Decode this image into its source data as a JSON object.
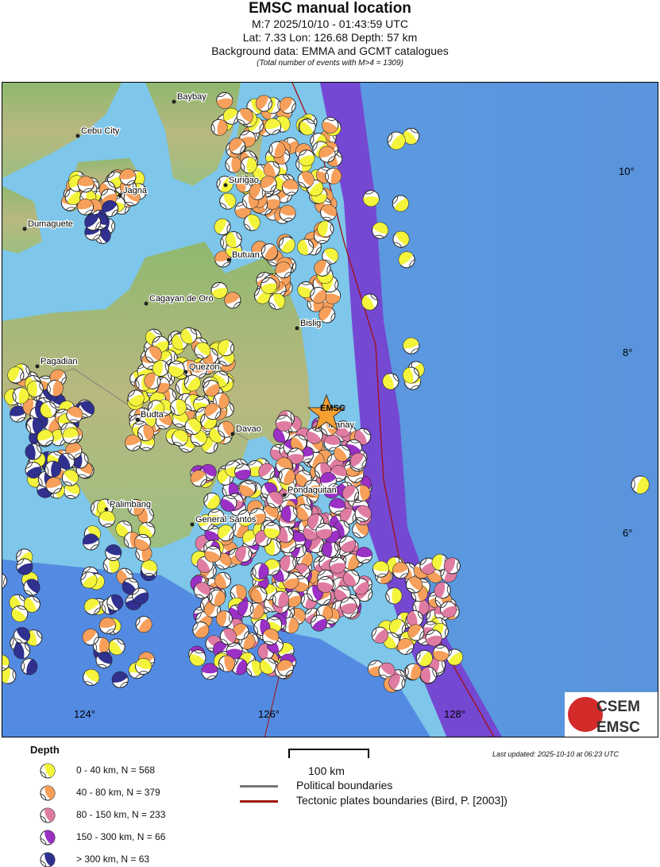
{
  "header": {
    "title": "EMSC manual location",
    "event": "M:7 2025/10/10 - 01:43:59 UTC",
    "location": "Lat: 7.33 Lon: 126.68 Depth: 57 km",
    "background": "Background data: EMMA and GCMT catalogues",
    "total": "(Total number of events with M>4 = 1309)"
  },
  "map": {
    "epicenter_label": "EMSC",
    "cities": [
      "Baybay",
      "Cebu City",
      "Surigao",
      "Jagna",
      "Dumaguete",
      "Butuan",
      "Cagayan de Oro",
      "Bislig",
      "Pagadian",
      "Quezon",
      "Budta",
      "Davao",
      "Manay",
      "Pondaguitan",
      "Palimbang",
      "General Santos"
    ],
    "lat_labels": [
      "10°",
      "8°",
      "6°"
    ],
    "lon_labels": [
      "124°",
      "126°",
      "128°"
    ],
    "logo": {
      "top": "CSEM",
      "bottom": "EMSC"
    },
    "colors": {
      "d0_40": "#f4f43c",
      "d40_80": "#f6a05c",
      "d80_150": "#e07ca2",
      "d150_300": "#9a30c4",
      "d300": "#30308f",
      "plate_boundary": "#a01010",
      "political": "#777777"
    }
  },
  "legend": {
    "title": "Depth",
    "items": [
      {
        "label": "0 - 40 km, N = 568",
        "color": "#f4f43c"
      },
      {
        "label": "40 - 80 km, N = 379",
        "color": "#f6a05c"
      },
      {
        "label": "80 - 150 km, N = 233",
        "color": "#e07ca2"
      },
      {
        "label": "150 - 300 km, N = 66",
        "color": "#9a30c4"
      },
      {
        "label": "> 300 km, N = 63",
        "color": "#30308f"
      }
    ],
    "scale": "100 km",
    "political": "Political boundaries",
    "tectonic": "Tectonic plates boundaries (Bird, P. [2003])",
    "updated": "Last updated: 2025-10-10 at 06:23 UTC"
  }
}
